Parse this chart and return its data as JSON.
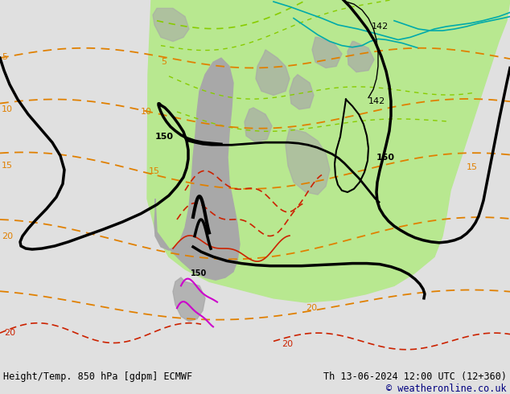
{
  "title_left": "Height/Temp. 850 hPa [gdpm] ECMWF",
  "title_right": "Th 13-06-2024 12:00 UTC (12+360)",
  "copyright": "© weatheronline.co.uk",
  "bg_color": "#e0e0e0",
  "ocean_color": "#d8d8d8",
  "land_green": "#b8e890",
  "land_gray": "#a8a8a8",
  "text_black": "#000000",
  "text_blue": "#000080",
  "orange": "#e08000",
  "red_dark": "#cc2200",
  "magenta": "#cc00cc",
  "cyan": "#00aaaa",
  "green_contour": "#88cc00",
  "black_contour": "#000000",
  "fig_width": 6.34,
  "fig_height": 4.9,
  "dpi": 100
}
